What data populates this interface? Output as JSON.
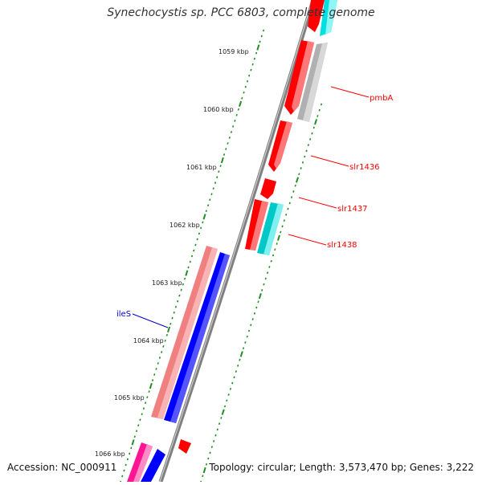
{
  "title": "Synechocystis sp. PCC 6803, complete genome",
  "accession": "Accession: NC_000911",
  "topology": "Topology: circular; Length: 3,573,470 bp; Genes: 3,222",
  "ruler": {
    "labels": [
      "1059 kbp",
      "1060 kbp",
      "1061 kbp",
      "1062 kbp",
      "1063 kbp",
      "1064 kbp",
      "1065 kbp",
      "1066 kbp"
    ],
    "tick_color": "#228b22"
  },
  "genes": {
    "right": [
      {
        "name": "pmbA",
        "color": "#ff0000"
      },
      {
        "name": "slr1436",
        "color": "#ff0000"
      },
      {
        "name": "slr1437",
        "color": "#ff0000"
      },
      {
        "name": "slr1438",
        "color": "#ff0000"
      }
    ],
    "left": [
      {
        "name": "ileS",
        "color": "#0000cc"
      }
    ]
  },
  "colors": {
    "backbone": "#808080",
    "forward_red": "#ff0000",
    "cyan": "#00e0e0",
    "grey": "#b0b0b0",
    "blue": "#0000ff",
    "pink": "#f08080",
    "magenta": "#ff1493"
  }
}
